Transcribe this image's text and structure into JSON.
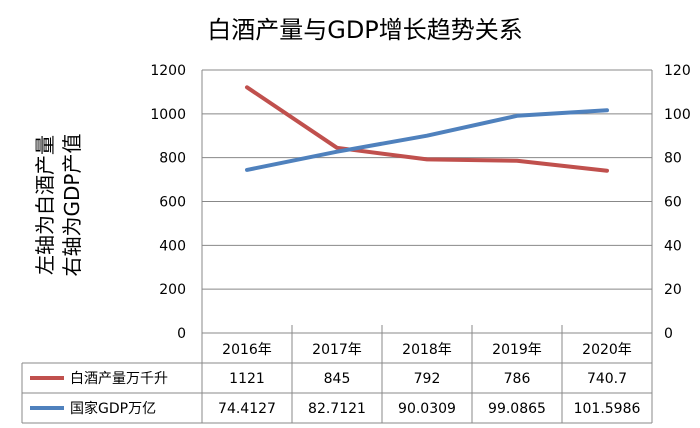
{
  "chart_data": {
    "type": "line",
    "title": "白酒产量与GDP增长趋势关系",
    "ylabel_left": "左轴为白酒产量",
    "ylabel_right": "右轴为GDP产值",
    "categories": [
      "2016年",
      "2017年",
      "2018年",
      "2019年",
      "2020年"
    ],
    "y_left": {
      "ylim": [
        0,
        1200
      ],
      "ticks": [
        "0",
        "200",
        "400",
        "600",
        "800",
        "1000",
        "1200"
      ]
    },
    "y_right": {
      "ylim": [
        0,
        120
      ],
      "ticks": [
        "0",
        "20",
        "40",
        "60",
        "80",
        "100",
        "120"
      ]
    },
    "grid": true,
    "series": [
      {
        "name": "白酒产量万千升",
        "axis": "left",
        "color": "#c0504d",
        "values": [
          1121,
          845,
          792,
          786,
          740.7
        ],
        "labels": [
          "1121",
          "845",
          "792",
          "786",
          "740.7"
        ]
      },
      {
        "name": "国家GDP万亿",
        "axis": "right",
        "color": "#4f81bd",
        "values": [
          74.4127,
          82.7121,
          90.0309,
          99.0865,
          101.5986
        ],
        "labels": [
          "74.4127",
          "82.7121",
          "90.0309",
          "99.0865",
          "101.5986"
        ]
      }
    ]
  }
}
